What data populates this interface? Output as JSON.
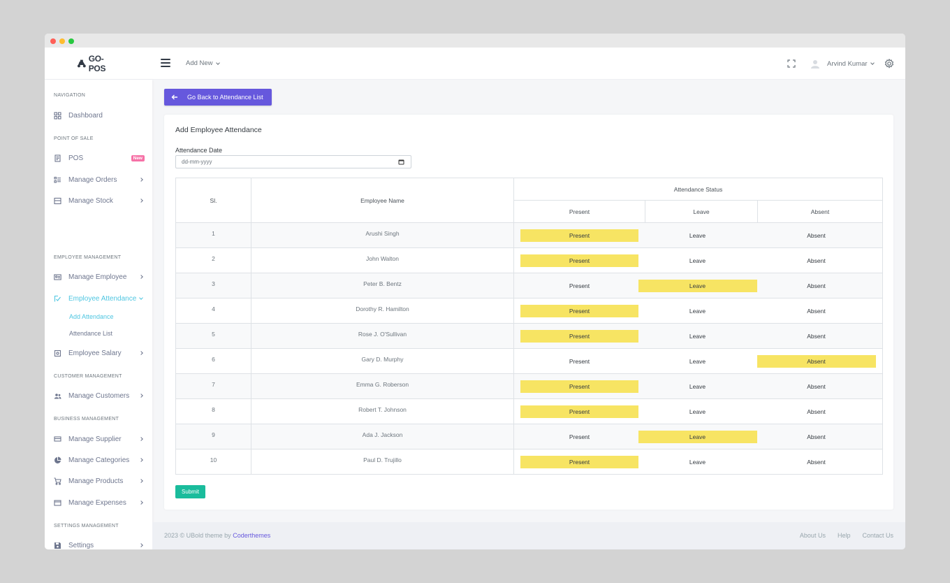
{
  "brand": {
    "name": "GO-POS"
  },
  "header": {
    "add_new": "Add New",
    "user_name": "Arvind Kumar"
  },
  "sidebar": {
    "sections": {
      "navigation": "NAVIGATION",
      "pos": "POINT OF SALE",
      "employee": "EMPLOYEE MANAGEMENT",
      "customer": "CUSTOMER MANAGEMENT",
      "business": "BUSINESS MANAGEMENT",
      "settings": "SETTINGS MANAGEMENT"
    },
    "items": {
      "dashboard": "Dashboard",
      "pos": "POS",
      "pos_badge": "New",
      "orders": "Manage Orders",
      "stock": "Manage Stock",
      "employee": "Manage Employee",
      "attendance": "Employee Attendance",
      "add_attendance": "Add Attendance",
      "attendance_list": "Attendance List",
      "salary": "Employee Salary",
      "customers": "Manage Customers",
      "supplier": "Manage Supplier",
      "categories": "Manage Categories",
      "products": "Manage Products",
      "expenses": "Manage Expenses",
      "settings": "Settings"
    }
  },
  "main": {
    "back_button": "Go Back to Attendance List",
    "card_title": "Add Employee Attendance",
    "date_label": "Attendance Date",
    "date_placeholder": "dd-mm-yyyy",
    "table": {
      "headers": {
        "sl": "Sl.",
        "name": "Employee Name",
        "status": "Attendance Status",
        "present": "Present",
        "leave": "Leave",
        "absent": "Absent"
      },
      "rows": [
        {
          "sl": "1",
          "name": "Arushi Singh",
          "status": "present"
        },
        {
          "sl": "2",
          "name": "John Walton",
          "status": "present"
        },
        {
          "sl": "3",
          "name": "Peter B. Bentz",
          "status": "leave"
        },
        {
          "sl": "4",
          "name": "Dorothy R. Hamilton",
          "status": "present"
        },
        {
          "sl": "5",
          "name": "Rose J. O'Sullivan",
          "status": "present"
        },
        {
          "sl": "6",
          "name": "Gary D. Murphy",
          "status": "absent"
        },
        {
          "sl": "7",
          "name": "Emma G. Roberson",
          "status": "present"
        },
        {
          "sl": "8",
          "name": "Robert T. Johnson",
          "status": "present"
        },
        {
          "sl": "9",
          "name": "Ada J. Jackson",
          "status": "leave"
        },
        {
          "sl": "10",
          "name": "Paul D. Trujillo",
          "status": "present"
        }
      ],
      "option_labels": {
        "present": "Present",
        "leave": "Leave",
        "absent": "Absent"
      }
    },
    "submit": "Submit"
  },
  "footer": {
    "copyright": "2023 © UBold theme by",
    "author": "Coderthemes",
    "links": [
      "About Us",
      "Help",
      "Contact Us"
    ]
  },
  "colors": {
    "primary": "#6658dd",
    "success": "#1abc9c",
    "active_nav": "#4fc6e1",
    "selected_status": "#f7e463",
    "badge": "#f672a7"
  }
}
